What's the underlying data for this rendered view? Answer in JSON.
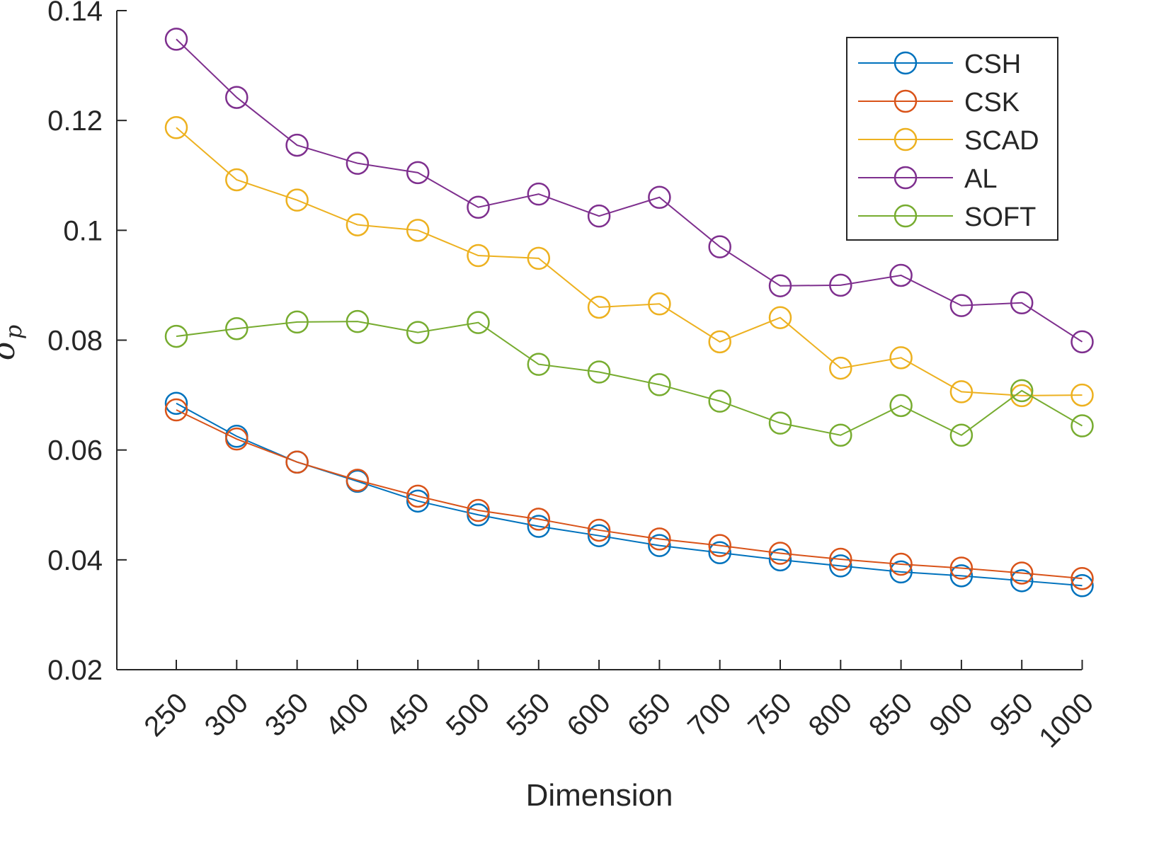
{
  "chart_data": {
    "type": "line",
    "title": "",
    "xlabel": "Dimension",
    "ylabel": "σ_p",
    "ylabel_main": "σ",
    "ylabel_sub": "p",
    "x": [
      250,
      300,
      350,
      400,
      450,
      500,
      550,
      600,
      650,
      700,
      750,
      800,
      850,
      900,
      950,
      1000
    ],
    "x_tick_labels": [
      "250",
      "300",
      "350",
      "400",
      "450",
      "500",
      "550",
      "600",
      "650",
      "700",
      "750",
      "800",
      "850",
      "900",
      "950",
      "1000"
    ],
    "ylim": [
      0.02,
      0.14
    ],
    "y_ticks": [
      0.02,
      0.04,
      0.06,
      0.08,
      0.1,
      0.12,
      0.14
    ],
    "y_tick_labels": [
      "0.02",
      "0.04",
      "0.06",
      "0.08",
      "0.1",
      "0.12",
      "0.14"
    ],
    "grid": false,
    "legend_position": "top-right",
    "marker": "circle",
    "series": [
      {
        "name": "CSH",
        "color": "#0072BD",
        "values": [
          0.0685,
          0.0625,
          0.0578,
          0.0543,
          0.0507,
          0.0482,
          0.0461,
          0.0444,
          0.0426,
          0.0413,
          0.04,
          0.0389,
          0.0378,
          0.0371,
          0.0362,
          0.0353
        ]
      },
      {
        "name": "CSK",
        "color": "#D95319",
        "values": [
          0.0673,
          0.062,
          0.0578,
          0.0545,
          0.0516,
          0.049,
          0.0474,
          0.0454,
          0.0438,
          0.0426,
          0.0412,
          0.0401,
          0.0392,
          0.0385,
          0.0376,
          0.0366
        ]
      },
      {
        "name": "SCAD",
        "color": "#EDB120",
        "values": [
          0.1187,
          0.1092,
          0.1055,
          0.101,
          0.1,
          0.0954,
          0.0949,
          0.086,
          0.0866,
          0.0797,
          0.0841,
          0.0749,
          0.0768,
          0.0706,
          0.0699,
          0.07
        ]
      },
      {
        "name": "AL",
        "color": "#7E2F8E",
        "values": [
          0.1348,
          0.1242,
          0.1155,
          0.1122,
          0.1105,
          0.1042,
          0.1066,
          0.1026,
          0.106,
          0.097,
          0.0899,
          0.09,
          0.0918,
          0.0863,
          0.0868,
          0.0797
        ]
      },
      {
        "name": "SOFT",
        "color": "#77AC30",
        "values": [
          0.0807,
          0.0821,
          0.0833,
          0.0834,
          0.0814,
          0.0832,
          0.0756,
          0.0742,
          0.0719,
          0.0689,
          0.0649,
          0.0627,
          0.0681,
          0.0627,
          0.0708,
          0.0644
        ]
      }
    ]
  }
}
